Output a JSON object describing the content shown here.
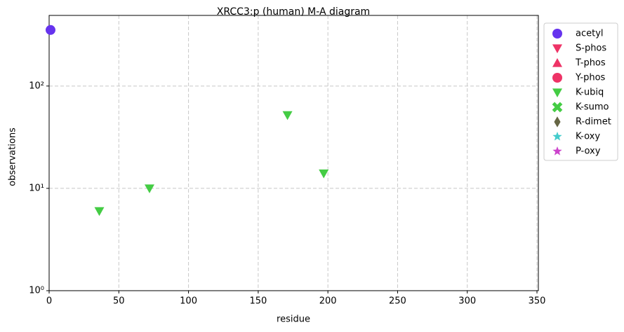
{
  "chart_data": {
    "type": "scatter",
    "title": "XRCC3:p (human) M-A diagram",
    "x_label": "residue",
    "y_label": "observations",
    "xlim": [
      0,
      351
    ],
    "xticks": [
      0,
      50,
      100,
      150,
      200,
      250,
      300,
      350
    ],
    "ylim": [
      1,
      490
    ],
    "log_y": true,
    "yticks": [
      {
        "value": 1,
        "label": "10⁰"
      },
      {
        "value": 10,
        "label": "10¹"
      },
      {
        "value": 100,
        "label": "10²"
      }
    ],
    "grid": true,
    "legend": "outside right",
    "series": [
      {
        "name": "acetyl",
        "color": "#6633ee",
        "marker": "circle",
        "x": [
          1
        ],
        "values": [
          353
        ]
      },
      {
        "name": "S-phos",
        "color": "#ee3366",
        "marker": "triangle-down",
        "x": [],
        "values": []
      },
      {
        "name": "T-phos",
        "color": "#ee3366",
        "marker": "triangle-up",
        "x": [],
        "values": []
      },
      {
        "name": "Y-phos",
        "color": "#ee3366",
        "marker": "circle",
        "x": [],
        "values": []
      },
      {
        "name": "K-ubiq",
        "color": "#44cc44",
        "marker": "triangle-down",
        "x": [
          36,
          72,
          171,
          197
        ],
        "values": [
          6,
          10,
          52,
          14
        ]
      },
      {
        "name": "K-sumo",
        "color": "#44cc44",
        "marker": "x",
        "x": [],
        "values": []
      },
      {
        "name": "R-dimet",
        "color": "#666644",
        "marker": "diamond",
        "x": [],
        "values": []
      },
      {
        "name": "K-oxy",
        "color": "#44cccc",
        "marker": "star",
        "x": [],
        "values": []
      },
      {
        "name": "P-oxy",
        "color": "#cc44cc",
        "marker": "star",
        "x": [],
        "values": []
      }
    ]
  }
}
